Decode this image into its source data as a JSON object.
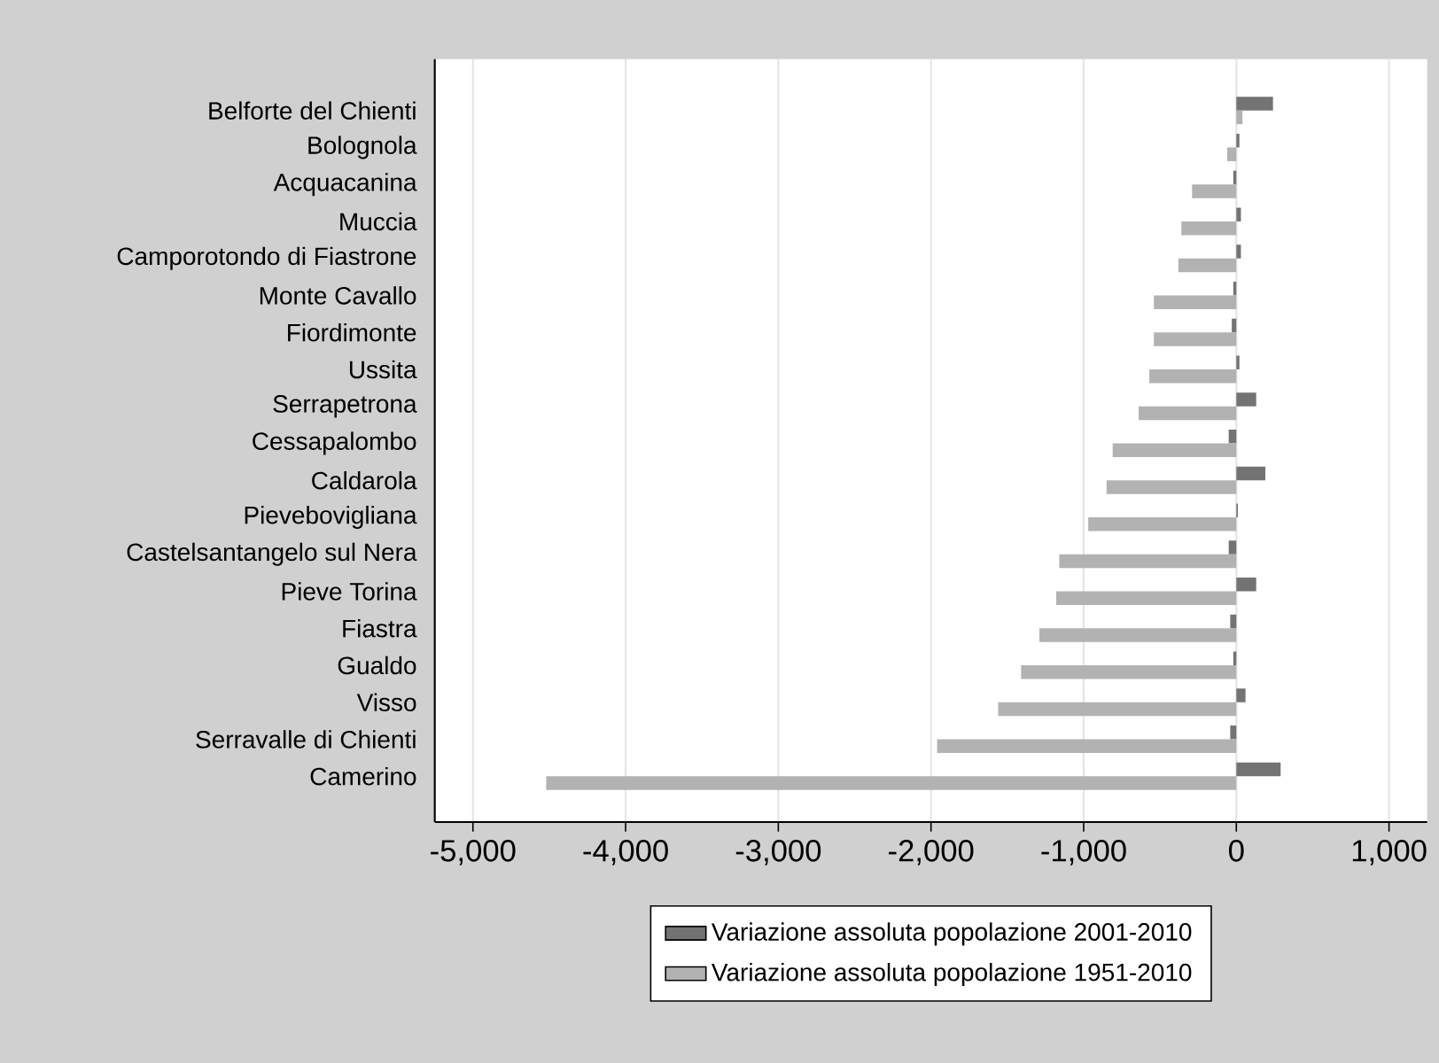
{
  "chart_data": {
    "type": "bar",
    "orientation": "horizontal",
    "categories": [
      "Belforte del Chienti",
      "Bolognola",
      "Acquacanina",
      "Muccia",
      "Camporotondo di Fiastrone",
      "Monte Cavallo",
      "Fiordimonte",
      "Ussita",
      "Serrapetrona",
      "Cessapalombo",
      "Caldarola",
      "Pievebovigliana",
      "Castelsantangelo sul Nera",
      "Pieve Torina",
      "Fiastra",
      "Gualdo",
      "Visso",
      "Serravalle di Chienti",
      "Camerino"
    ],
    "series": [
      {
        "name": "Variazione assoluta popolazione 2001-2010",
        "color": "#737373",
        "values": [
          240,
          20,
          -20,
          30,
          30,
          -20,
          -30,
          20,
          130,
          -50,
          190,
          10,
          -50,
          130,
          -40,
          -20,
          60,
          -40,
          290
        ]
      },
      {
        "name": "Variazione assoluta popolazione 1951-2010",
        "color": "#b2b2b2",
        "values": [
          40,
          -60,
          -290,
          -360,
          -380,
          -540,
          -540,
          -570,
          -640,
          -810,
          -850,
          -970,
          -1160,
          -1180,
          -1290,
          -1410,
          -1560,
          -1960,
          -4520
        ]
      }
    ],
    "xlim": [
      -5250,
      1250
    ],
    "xticks": [
      {
        "value": -5000,
        "label": "-5,000"
      },
      {
        "value": -4000,
        "label": "-4,000"
      },
      {
        "value": -3000,
        "label": "-3,000"
      },
      {
        "value": -2000,
        "label": "-2,000"
      },
      {
        "value": -1000,
        "label": "-1,000"
      },
      0,
      {
        "value": 1000,
        "label": "1,000"
      }
    ],
    "grid": "x",
    "legend": "bottom"
  }
}
